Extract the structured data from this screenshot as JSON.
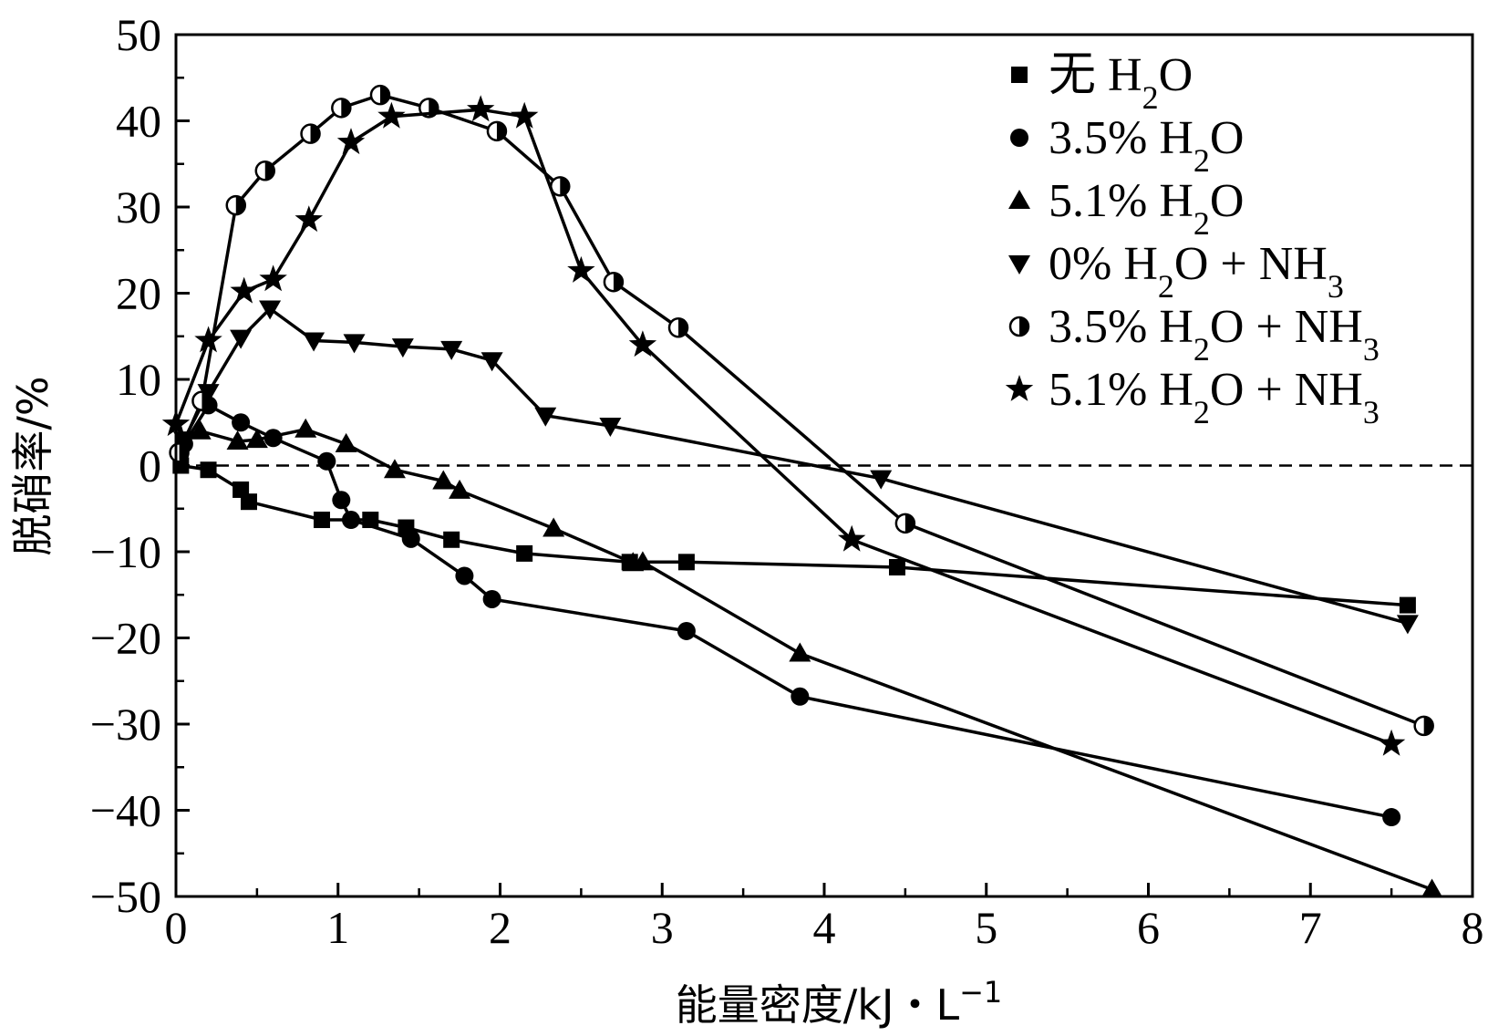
{
  "chart_data": {
    "type": "line",
    "title": "",
    "xlabel": "能量密度/kJ・L",
    "xlabel_sup": "−1",
    "ylabel": "脱硝率/%",
    "xlim": [
      0,
      8
    ],
    "ylim": [
      -50,
      50
    ],
    "xticks": [
      0,
      1,
      2,
      3,
      4,
      5,
      6,
      7,
      8
    ],
    "yticks": [
      50,
      40,
      30,
      20,
      10,
      0,
      -10,
      -20,
      -30,
      -40,
      -50
    ],
    "xtick_labels": [
      "0",
      "1",
      "2",
      "3",
      "4",
      "5",
      "6",
      "7",
      "8"
    ],
    "ytick_labels": [
      "50",
      "40",
      "30",
      "20",
      "10",
      "0",
      "−10",
      "−20",
      "−30",
      "−40",
      "−50"
    ],
    "zero_line": "dashed",
    "grid": false,
    "legend_position": "top-right",
    "series": [
      {
        "name": "无 H2O",
        "legend_parts": {
          "pre": "无",
          "chem": "H",
          "sub": "2",
          "post": "O",
          "extra": ""
        },
        "marker": "square",
        "x": [
          0.03,
          0.2,
          0.4,
          0.45,
          0.9,
          1.2,
          1.42,
          1.7,
          2.15,
          2.8,
          3.15,
          4.45,
          7.6
        ],
        "y": [
          0,
          -0.5,
          -2.8,
          -4.2,
          -6.3,
          -6.3,
          -7.2,
          -8.6,
          -10.2,
          -11.2,
          -11.2,
          -11.8,
          -16.2
        ]
      },
      {
        "name": "3.5% H2O",
        "legend_parts": {
          "pre": "3.5%",
          "chem": "H",
          "sub": "2",
          "post": "O",
          "extra": ""
        },
        "marker": "circle",
        "x": [
          0.05,
          0.2,
          0.4,
          0.6,
          0.93,
          1.02,
          1.08,
          1.45,
          1.78,
          1.95,
          3.15,
          3.85,
          7.5
        ],
        "y": [
          2.5,
          7,
          5,
          3.2,
          0.5,
          -4,
          -6.3,
          -8.5,
          -12.8,
          -15.5,
          -19.2,
          -26.8,
          -40.8
        ]
      },
      {
        "name": "5.1% H2O",
        "legend_parts": {
          "pre": "5.1%",
          "chem": "H",
          "sub": "2",
          "post": "O",
          "extra": ""
        },
        "marker": "triangle-up",
        "x": [
          0.15,
          0.38,
          0.5,
          0.8,
          1.05,
          1.35,
          1.65,
          1.75,
          2.33,
          2.82,
          2.88,
          3.85,
          7.75
        ],
        "y": [
          4,
          2.8,
          3,
          4.2,
          2.5,
          -0.5,
          -1.8,
          -2.9,
          -7.3,
          -11.3,
          -11.2,
          -21.8,
          -49.2
        ]
      },
      {
        "name": "0% H2O + NH3",
        "legend_parts": {
          "pre": "0%",
          "chem": "H",
          "sub": "2",
          "post": "O",
          "extra": " + NH"
        },
        "legend_sub2": "3",
        "marker": "triangle-down",
        "x": [
          0.05,
          0.2,
          0.4,
          0.58,
          0.85,
          1.1,
          1.4,
          1.7,
          1.95,
          2.28,
          2.68,
          4.35,
          7.6
        ],
        "y": [
          3,
          8.5,
          14.8,
          18.2,
          14.5,
          14.3,
          13.8,
          13.5,
          12.2,
          5.8,
          4.6,
          -1.5,
          -18.3
        ]
      },
      {
        "name": "3.5% H2O + NH3",
        "legend_parts": {
          "pre": "3.5%",
          "chem": "H",
          "sub": "2",
          "post": "O",
          "extra": " + NH"
        },
        "legend_sub2": "3",
        "marker": "circle-half",
        "x": [
          0.02,
          0.16,
          0.37,
          0.55,
          0.83,
          1.02,
          1.26,
          1.56,
          1.98,
          2.37,
          2.7,
          3.1,
          4.5,
          7.7
        ],
        "y": [
          1.5,
          7.5,
          30.2,
          34.2,
          38.5,
          41.5,
          43,
          41.5,
          38.8,
          32.4,
          21.3,
          16,
          -6.7,
          -30.2
        ]
      },
      {
        "name": "5.1% H2O + NH3",
        "legend_parts": {
          "pre": "5.1%",
          "chem": "H",
          "sub": "2",
          "post": "O",
          "extra": " + NH"
        },
        "legend_sub2": "3",
        "marker": "star",
        "x": [
          0,
          0.2,
          0.42,
          0.6,
          0.82,
          1.08,
          1.33,
          1.88,
          2.15,
          2.5,
          2.88,
          4.17,
          7.5
        ],
        "y": [
          4.8,
          14.5,
          20.2,
          21.6,
          28.5,
          37.5,
          40.5,
          41.3,
          40.5,
          22.6,
          14,
          -8.6,
          -32.3
        ]
      }
    ]
  }
}
